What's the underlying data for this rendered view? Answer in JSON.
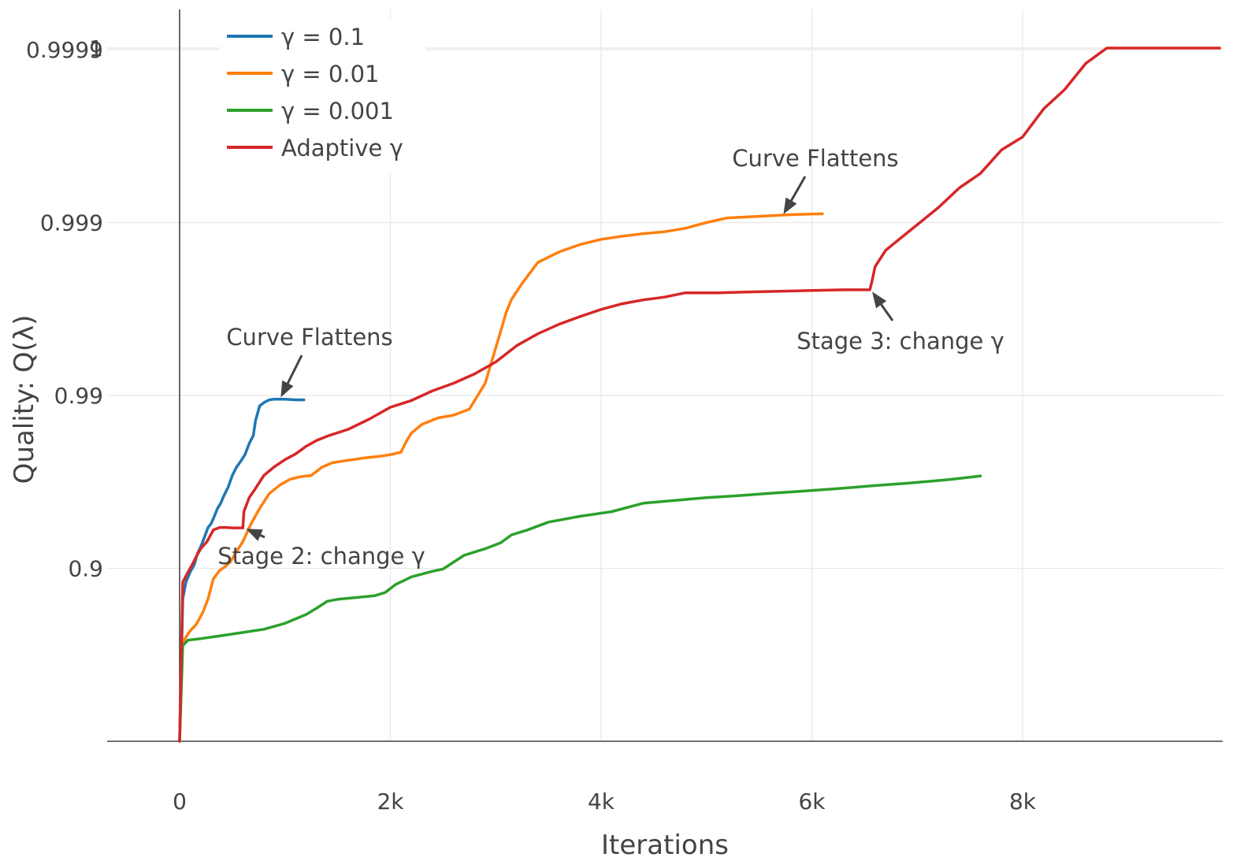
{
  "chart_data": {
    "type": "line",
    "xlabel": "Iterations",
    "ylabel": "Quality: Q(λ)",
    "xlim": [
      -700,
      9900
    ],
    "y_scale": "log-complement",
    "xticks": [
      {
        "value": 0,
        "label": "0"
      },
      {
        "value": 2000,
        "label": "2k"
      },
      {
        "value": 4000,
        "label": "4k"
      },
      {
        "value": 6000,
        "label": "6k"
      },
      {
        "value": 8000,
        "label": "8k"
      }
    ],
    "yticks": [
      {
        "value": 0.9,
        "label": "0.9"
      },
      {
        "value": 0.99,
        "label": "0.99"
      },
      {
        "value": 0.999,
        "label": "0.999"
      },
      {
        "value": 0.9999,
        "label": "0.9999"
      },
      {
        "value": 1,
        "label": "1"
      }
    ],
    "grid": true,
    "legend_position": "top-left",
    "series": [
      {
        "name": "γ = 0.1",
        "color": "#1f77b4",
        "x": [
          0,
          30,
          60,
          100,
          140,
          170,
          200,
          240,
          270,
          300,
          330,
          360,
          390,
          420,
          460,
          500,
          540,
          580,
          620,
          660,
          700,
          720,
          760,
          800,
          850,
          900,
          1000,
          1100,
          1180
        ],
        "y": [
          0.0,
          0.85,
          0.88,
          0.895,
          0.905,
          0.918,
          0.925,
          0.935,
          0.942,
          0.945,
          0.95,
          0.955,
          0.958,
          0.962,
          0.966,
          0.971,
          0.974,
          0.976,
          0.978,
          0.981,
          0.983,
          0.986,
          0.9885,
          0.989,
          0.9894,
          0.9895,
          0.9895,
          0.9894,
          0.9894
        ]
      },
      {
        "name": "γ = 0.01",
        "color": "#ff7f0e",
        "x": [
          0,
          20,
          60,
          100,
          160,
          220,
          270,
          320,
          380,
          430,
          480,
          540,
          600,
          680,
          760,
          850,
          950,
          1050,
          1150,
          1250,
          1350,
          1450,
          1600,
          1750,
          1900,
          2000,
          2100,
          2150,
          2200,
          2300,
          2450,
          2600,
          2750,
          2900,
          3000,
          3050,
          3100,
          3150,
          3250,
          3400,
          3600,
          3800,
          4000,
          4200,
          4400,
          4600,
          4800,
          5000,
          5200,
          5500,
          5800,
          6100
        ],
        "y": [
          0.0,
          0.72,
          0.75,
          0.77,
          0.79,
          0.82,
          0.85,
          0.885,
          0.897,
          0.902,
          0.908,
          0.92,
          0.93,
          0.945,
          0.955,
          0.963,
          0.967,
          0.9695,
          0.9705,
          0.971,
          0.974,
          0.9755,
          0.9763,
          0.977,
          0.9775,
          0.978,
          0.9787,
          0.9815,
          0.9835,
          0.9853,
          0.9865,
          0.987,
          0.988,
          0.9915,
          0.9947,
          0.9958,
          0.9967,
          0.99722,
          0.99775,
          0.9983,
          0.99852,
          0.99866,
          0.99875,
          0.9988,
          0.99884,
          0.99887,
          0.99892,
          0.999,
          0.99906,
          0.99908,
          0.9991,
          0.99911
        ]
      },
      {
        "name": "γ = 0.001",
        "color": "#2ca02c",
        "x": [
          0,
          30,
          80,
          200,
          400,
          600,
          800,
          1000,
          1200,
          1300,
          1400,
          1500,
          1700,
          1850,
          1950,
          2050,
          2200,
          2400,
          2500,
          2600,
          2700,
          2900,
          3050,
          3150,
          3300,
          3500,
          3800,
          4100,
          4400,
          4700,
          5000,
          5300,
          5600,
          5900,
          6300,
          6600,
          6900,
          7300,
          7600
        ],
        "y": [
          0.0,
          0.72,
          0.74,
          0.745,
          0.755,
          0.765,
          0.775,
          0.792,
          0.815,
          0.83,
          0.845,
          0.849,
          0.853,
          0.856,
          0.862,
          0.876,
          0.888,
          0.896,
          0.899,
          0.908,
          0.916,
          0.923,
          0.929,
          0.936,
          0.94,
          0.946,
          0.95,
          0.953,
          0.958,
          0.9595,
          0.961,
          0.962,
          0.9632,
          0.9642,
          0.9656,
          0.9668,
          0.9678,
          0.9693,
          0.9708
        ]
      },
      {
        "name": "Adaptive γ",
        "color": "#d62728",
        "x": [
          0,
          30,
          80,
          120,
          160,
          200,
          260,
          320,
          380,
          440,
          500,
          560,
          600,
          610,
          660,
          720,
          800,
          900,
          1000,
          1100,
          1200,
          1300,
          1400,
          1600,
          1800,
          2000,
          2200,
          2400,
          2600,
          2800,
          3000,
          3200,
          3400,
          3600,
          3800,
          4000,
          4200,
          4400,
          4600,
          4800,
          5100,
          5400,
          5700,
          6000,
          6300,
          6550,
          6570,
          6600,
          6700,
          6850,
          7000,
          7200,
          7400,
          7600,
          7800,
          8000,
          8200,
          8400,
          8600,
          8800,
          9000,
          9200,
          9400,
          9600,
          9750,
          9870
        ],
        "y": [
          0.0,
          0.88,
          0.895,
          0.905,
          0.915,
          0.923,
          0.93,
          0.94,
          0.942,
          0.942,
          0.9417,
          0.9417,
          0.9417,
          0.953,
          0.961,
          0.9655,
          0.971,
          0.9742,
          0.9765,
          0.9782,
          0.9803,
          0.9818,
          0.9828,
          0.9843,
          0.9863,
          0.9883,
          0.9893,
          0.9906,
          0.9915,
          0.9925,
          0.9936,
          0.99485,
          0.9956,
          0.99612,
          0.9965,
          0.99682,
          0.99705,
          0.9972,
          0.9973,
          0.99745,
          0.99745,
          0.99748,
          0.9975,
          0.99753,
          0.99755,
          0.99755,
          0.9978,
          0.9982,
          0.99855,
          0.99878,
          0.99897,
          0.99918,
          0.99937,
          0.99948,
          0.99962,
          0.99968,
          0.99978,
          0.99983,
          0.99988,
          0.99992,
          0.99993,
          0.99996,
          0.999975,
          0.999985,
          0.99999,
          0.999999
        ]
      }
    ],
    "annotations": [
      {
        "text": "Curve Flattens",
        "x": 950,
        "y": 0.98945
      },
      {
        "text": "Curve Flattens",
        "x": 5720,
        "y": 0.99908
      },
      {
        "text": "Stage 2: change γ",
        "x": 610,
        "y": 0.9417
      },
      {
        "text": "Stage 3: change γ",
        "x": 6560,
        "y": 0.99755
      }
    ]
  }
}
